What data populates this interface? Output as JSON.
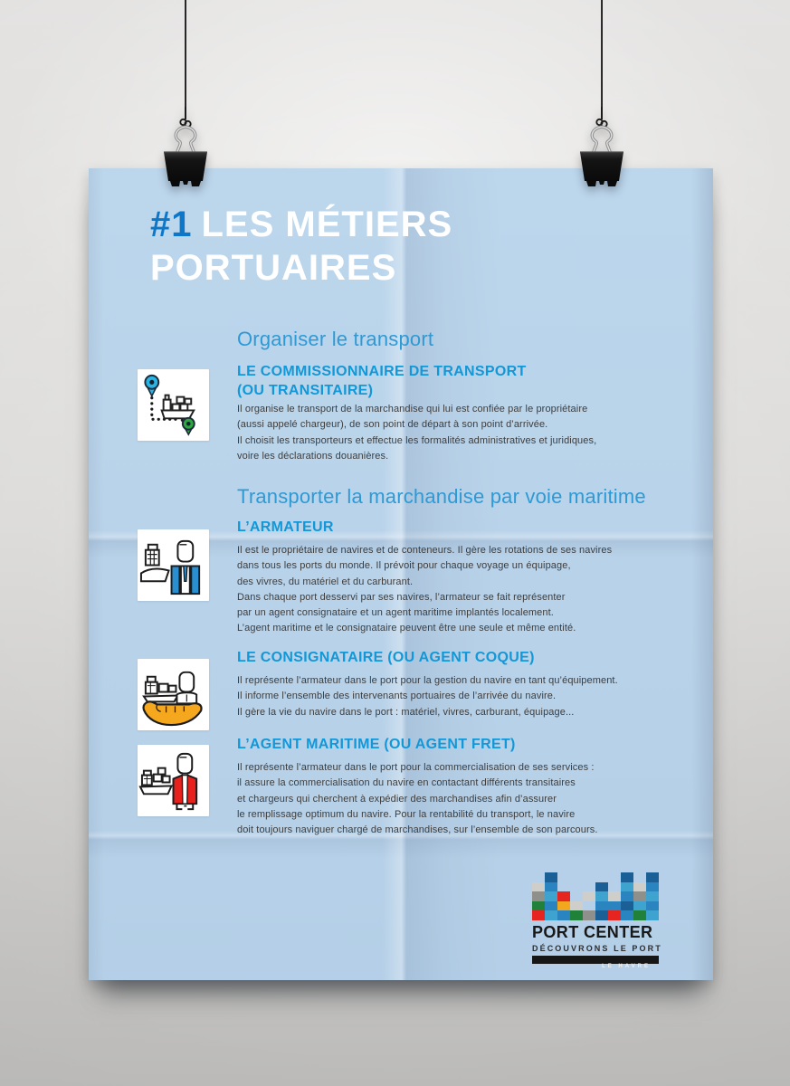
{
  "poster": {
    "kicker": "#1",
    "title_line1": "LES MÉTIERS",
    "title_line2": "PORTUAIRES",
    "section1_heading": "Organiser le transport",
    "section2_heading": "Transporter la marchandise par voie maritime",
    "jobs": [
      {
        "icon": "route-pins",
        "title": "LE COMMISSIONNAIRE DE TRANSPORT\n(OU TRANSITAIRE)",
        "body": "Il organise le transport de la marchandise qui lui est confiée par le propriétaire\n(aussi appelé chargeur), de son point de départ à son point d’arrivée.\nIl choisit les transporteurs et effectue les formalités administratives et juridiques,\nvoire les déclarations douanières."
      },
      {
        "icon": "ship-and-shipowner",
        "title": "L’ARMATEUR",
        "body": "Il est le propriétaire de navires et de conteneurs. Il gère les rotations de ses navires\ndans tous les ports du monde. Il prévoit pour chaque voyage un équipage,\ndes vivres, du matériel et du carburant.\nDans chaque port desservi par ses navires, l’armateur se fait représenter\npar un agent consignataire et un agent maritime implantés localement.\nL’agent maritime et le consignataire peuvent être une seule et même entité."
      },
      {
        "icon": "hand-holding-ship",
        "title": "LE CONSIGNATAIRE (OU AGENT COQUE)",
        "body": "Il représente l’armateur dans le port pour la gestion du navire en tant qu’équipement.\nIl informe l’ensemble des intervenants portuaires de l’arrivée du navire.\nIl gère la vie du navire dans le port : matériel, vivres, carburant, équipage..."
      },
      {
        "icon": "freight-agent",
        "title": "L’AGENT MARITIME (OU AGENT FRET)",
        "body": "Il représente l’armateur dans le port pour la commercialisation de ses services :\nil assure la commercialisation du navire en contactant différents transitaires\net chargeurs qui cherchent à expédier des marchandises afin d’assurer\nle remplissage optimum du navire. Pour la rentabilité du transport, le navire\ndoit toujours naviguer chargé de marchandises, sur l’ensemble de son parcours."
      }
    ],
    "logo": {
      "name": "PORT CENTER",
      "tagline": "DÉCOUVRONS LE PORT",
      "city": "LE HAVRE",
      "palette": {
        "n": "#1a6096",
        "b": "#2a84c0",
        "c": "#3fa3cf",
        "lg": "#cfcecb",
        "g": "#8f8f8b",
        "gn": "#20813a",
        "r": "#e62520",
        "o": "#f2a71e"
      },
      "mosaic": [
        [
          "",
          "n",
          "",
          "",
          "",
          "",
          "",
          "n",
          "",
          "n"
        ],
        [
          "lg",
          "b",
          "",
          "",
          "",
          "n",
          "",
          "c",
          "lg",
          "b"
        ],
        [
          "g",
          "c",
          "r",
          "",
          "lg",
          "c",
          "lg",
          "b",
          "g",
          "c"
        ],
        [
          "gn",
          "b",
          "o",
          "lg",
          "",
          "b",
          "b",
          "n",
          "c",
          "b"
        ],
        [
          "r",
          "c",
          "b",
          "gn",
          "g",
          "n",
          "r",
          "b",
          "gn",
          "c"
        ]
      ]
    }
  },
  "colors": {
    "poster_bg": "#b9d3e9",
    "kicker_blue": "#0c77c8",
    "title_white": "#ffffff",
    "section_heading_blue": "#2d9ad6",
    "job_title_blue": "#1198d8",
    "body_text": "#3d3d3d",
    "pin_blue": "#29b4e6",
    "pin_green": "#2ca83e",
    "suit_blue": "#2a8fd1",
    "hand_orange": "#f5a71d",
    "vest_red": "#e8211d"
  }
}
